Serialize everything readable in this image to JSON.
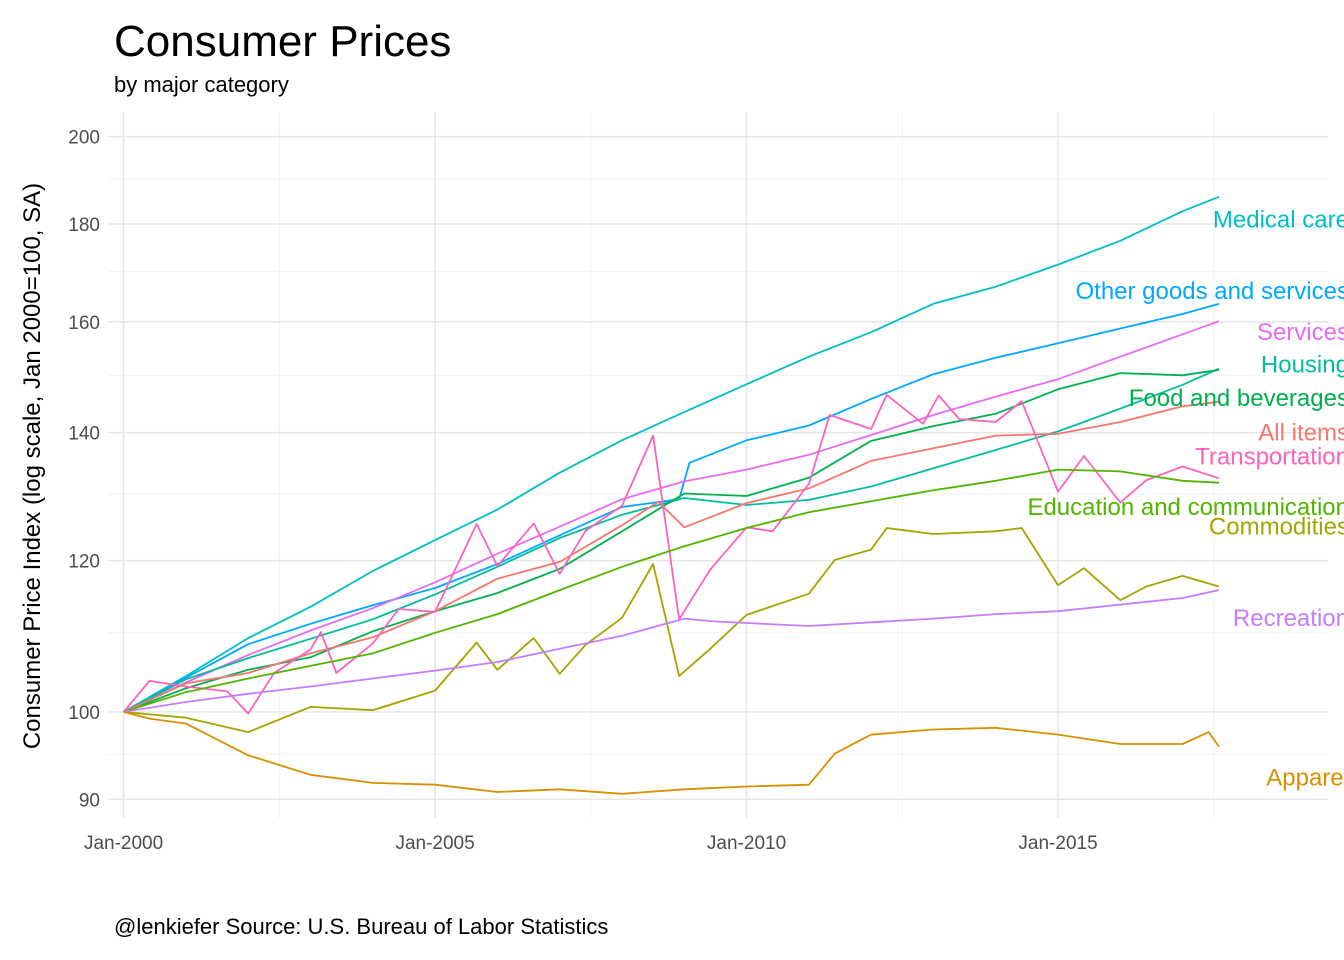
{
  "chart_data": {
    "type": "line",
    "title": "Consumer Prices",
    "subtitle": "by major category",
    "ylabel": "Consumer Price Index (log scale, Jan 2000=100, SA)",
    "xlabel": "",
    "caption": "@lenkiefer Source: U.S. Bureau of Labor Statistics",
    "y_scale": "log",
    "ylim": [
      88,
      206
    ],
    "xlim": [
      "1999-10",
      "2019-05"
    ],
    "grid": true,
    "legend": "direct labels at line ends",
    "y_ticks": [
      90,
      100,
      120,
      140,
      160,
      180,
      200
    ],
    "y_minor_ticks": [
      95,
      110,
      130,
      150,
      170,
      190
    ],
    "x_ticks": [
      {
        "date": "2000-01",
        "label": "Jan-2000"
      },
      {
        "date": "2005-01",
        "label": "Jan-2005"
      },
      {
        "date": "2010-01",
        "label": "Jan-2010"
      },
      {
        "date": "2015-01",
        "label": "Jan-2015"
      }
    ],
    "x_minor_ticks": [
      "2002-07",
      "2007-07",
      "2012-07",
      "2017-07"
    ],
    "series": [
      {
        "name": "Medical care",
        "color": "#00BFC4",
        "label_y": 181,
        "points": [
          [
            "2000-01",
            100
          ],
          [
            "2001-01",
            104.4
          ],
          [
            "2002-01",
            109.3
          ],
          [
            "2003-01",
            113.5
          ],
          [
            "2004-01",
            118.5
          ],
          [
            "2005-01",
            123
          ],
          [
            "2006-01",
            127.6
          ],
          [
            "2007-01",
            133.4
          ],
          [
            "2008-01",
            138.7
          ],
          [
            "2009-01",
            143.5
          ],
          [
            "2010-01",
            148.4
          ],
          [
            "2011-01",
            153.4
          ],
          [
            "2012-01",
            158
          ],
          [
            "2013-01",
            163.5
          ],
          [
            "2014-01",
            166.9
          ],
          [
            "2015-01",
            171.4
          ],
          [
            "2016-01",
            176.4
          ],
          [
            "2017-01",
            182.8
          ],
          [
            "2017-08",
            186
          ]
        ]
      },
      {
        "name": "Other goods and services",
        "color": "#00A9FF",
        "label_y": 166,
        "points": [
          [
            "2000-01",
            100
          ],
          [
            "2001-01",
            104.2
          ],
          [
            "2002-01",
            108.5
          ],
          [
            "2003-01",
            111.2
          ],
          [
            "2004-01",
            113.7
          ],
          [
            "2005-01",
            116.1
          ],
          [
            "2006-01",
            119.5
          ],
          [
            "2007-01",
            123.7
          ],
          [
            "2008-01",
            128
          ],
          [
            "2008-12",
            129.2
          ],
          [
            "2009-02",
            135
          ],
          [
            "2010-01",
            138.7
          ],
          [
            "2011-01",
            141.2
          ],
          [
            "2012-01",
            145.8
          ],
          [
            "2013-01",
            150.2
          ],
          [
            "2014-01",
            153.2
          ],
          [
            "2015-01",
            155.9
          ],
          [
            "2016-01",
            158.7
          ],
          [
            "2017-01",
            161.5
          ],
          [
            "2017-08",
            163.5
          ]
        ]
      },
      {
        "name": "Services",
        "color": "#E76BF3",
        "label_y": 158,
        "points": [
          [
            "2000-01",
            100
          ],
          [
            "2001-01",
            103.6
          ],
          [
            "2002-01",
            107.1
          ],
          [
            "2003-01",
            110.3
          ],
          [
            "2004-01",
            113.3
          ],
          [
            "2005-01",
            116.9
          ],
          [
            "2006-01",
            121
          ],
          [
            "2007-01",
            125
          ],
          [
            "2008-01",
            129.2
          ],
          [
            "2009-01",
            132
          ],
          [
            "2010-01",
            133.9
          ],
          [
            "2011-01",
            136.3
          ],
          [
            "2012-01",
            139.6
          ],
          [
            "2013-01",
            143
          ],
          [
            "2014-01",
            146.2
          ],
          [
            "2015-01",
            149.3
          ],
          [
            "2016-01",
            153.4
          ],
          [
            "2017-01",
            157.6
          ],
          [
            "2017-08",
            160.1
          ]
        ]
      },
      {
        "name": "Housing",
        "color": "#00BE9C",
        "label_y": 152,
        "points": [
          [
            "2000-01",
            100
          ],
          [
            "2001-01",
            104
          ],
          [
            "2002-01",
            106.7
          ],
          [
            "2003-01",
            109.2
          ],
          [
            "2004-01",
            111.8
          ],
          [
            "2005-01",
            115.2
          ],
          [
            "2006-01",
            119.1
          ],
          [
            "2007-01",
            123.3
          ],
          [
            "2008-01",
            126.8
          ],
          [
            "2009-01",
            129.4
          ],
          [
            "2010-01",
            128.3
          ],
          [
            "2011-01",
            129.1
          ],
          [
            "2012-01",
            131.2
          ],
          [
            "2013-01",
            134.1
          ],
          [
            "2014-01",
            137.1
          ],
          [
            "2015-01",
            140.2
          ],
          [
            "2016-01",
            144.1
          ],
          [
            "2017-01",
            148.3
          ],
          [
            "2017-08",
            151.2
          ]
        ]
      },
      {
        "name": "Food and beverages",
        "color": "#00B050",
        "label_y": 146,
        "points": [
          [
            "2000-01",
            100
          ],
          [
            "2001-01",
            102.9
          ],
          [
            "2002-01",
            105.2
          ],
          [
            "2003-01",
            106.8
          ],
          [
            "2004-01",
            110.2
          ],
          [
            "2005-01",
            112.9
          ],
          [
            "2006-01",
            115.4
          ],
          [
            "2007-01",
            118.8
          ],
          [
            "2008-01",
            124.3
          ],
          [
            "2009-01",
            130.1
          ],
          [
            "2010-01",
            129.7
          ],
          [
            "2011-01",
            132.6
          ],
          [
            "2012-01",
            138.6
          ],
          [
            "2013-01",
            141.1
          ],
          [
            "2014-01",
            143.2
          ],
          [
            "2015-01",
            147.5
          ],
          [
            "2016-01",
            150.4
          ],
          [
            "2017-01",
            150
          ],
          [
            "2017-08",
            151
          ]
        ]
      },
      {
        "name": "All items",
        "color": "#F8766D",
        "label_y": 140,
        "points": [
          [
            "2000-01",
            100
          ],
          [
            "2001-01",
            103.5
          ],
          [
            "2002-01",
            104.8
          ],
          [
            "2003-01",
            107.3
          ],
          [
            "2004-01",
            109.4
          ],
          [
            "2005-01",
            112.9
          ],
          [
            "2006-01",
            117.4
          ],
          [
            "2007-01",
            119.8
          ],
          [
            "2008-01",
            125.2
          ],
          [
            "2008-08",
            128.8
          ],
          [
            "2009-01",
            124.9
          ],
          [
            "2010-01",
            128.6
          ],
          [
            "2011-01",
            130.9
          ],
          [
            "2012-01",
            135.3
          ],
          [
            "2013-01",
            137.4
          ],
          [
            "2014-01",
            139.5
          ],
          [
            "2015-01",
            139.8
          ],
          [
            "2016-01",
            141.8
          ],
          [
            "2017-01",
            144.5
          ],
          [
            "2017-08",
            145.3
          ]
        ]
      },
      {
        "name": "Transportation",
        "color": "#FF62BC",
        "label_y": 136,
        "points": [
          [
            "2000-01",
            100
          ],
          [
            "2000-06",
            103.8
          ],
          [
            "2001-01",
            103.1
          ],
          [
            "2001-09",
            102.5
          ],
          [
            "2002-01",
            99.8
          ],
          [
            "2002-06",
            104.8
          ],
          [
            "2003-01",
            107.8
          ],
          [
            "2003-03",
            110.1
          ],
          [
            "2003-06",
            104.8
          ],
          [
            "2004-01",
            108.6
          ],
          [
            "2004-06",
            113.2
          ],
          [
            "2005-01",
            112.8
          ],
          [
            "2005-09",
            125.4
          ],
          [
            "2006-01",
            119.2
          ],
          [
            "2006-08",
            125.5
          ],
          [
            "2007-01",
            118.1
          ],
          [
            "2007-06",
            124.4
          ],
          [
            "2008-01",
            128.2
          ],
          [
            "2008-07",
            139.5
          ],
          [
            "2008-12",
            111.8
          ],
          [
            "2009-06",
            118.7
          ],
          [
            "2010-01",
            124.9
          ],
          [
            "2010-06",
            124.3
          ],
          [
            "2011-01",
            131.6
          ],
          [
            "2011-05",
            143
          ],
          [
            "2012-01",
            140.6
          ],
          [
            "2012-04",
            146.5
          ],
          [
            "2012-11",
            141.5
          ],
          [
            "2013-02",
            146.4
          ],
          [
            "2013-06",
            142.3
          ],
          [
            "2014-01",
            141.8
          ],
          [
            "2014-06",
            145.4
          ],
          [
            "2015-01",
            130.4
          ],
          [
            "2015-06",
            136.1
          ],
          [
            "2016-01",
            128.7
          ],
          [
            "2016-06",
            132.2
          ],
          [
            "2017-01",
            134.4
          ],
          [
            "2017-08",
            132.5
          ]
        ]
      },
      {
        "name": "Education and communication",
        "color": "#53B400",
        "label_y": 128,
        "points": [
          [
            "2000-01",
            100
          ],
          [
            "2001-01",
            102.4
          ],
          [
            "2002-01",
            104.1
          ],
          [
            "2003-01",
            105.7
          ],
          [
            "2004-01",
            107.3
          ],
          [
            "2005-01",
            110
          ],
          [
            "2006-01",
            112.5
          ],
          [
            "2007-01",
            115.8
          ],
          [
            "2008-01",
            119.1
          ],
          [
            "2009-01",
            122.1
          ],
          [
            "2010-01",
            124.8
          ],
          [
            "2011-01",
            127.2
          ],
          [
            "2012-01",
            128.9
          ],
          [
            "2013-01",
            130.6
          ],
          [
            "2014-01",
            132.1
          ],
          [
            "2015-01",
            133.9
          ],
          [
            "2016-01",
            133.6
          ],
          [
            "2017-01",
            132.1
          ],
          [
            "2017-08",
            131.8
          ]
        ]
      },
      {
        "name": "Commodities",
        "color": "#A3A500",
        "label_y": 125,
        "points": [
          [
            "2000-01",
            100
          ],
          [
            "2001-01",
            99.3
          ],
          [
            "2002-01",
            97.6
          ],
          [
            "2003-01",
            100.6
          ],
          [
            "2004-01",
            100.2
          ],
          [
            "2005-01",
            102.6
          ],
          [
            "2005-09",
            108.7
          ],
          [
            "2006-01",
            105.2
          ],
          [
            "2006-08",
            109.3
          ],
          [
            "2007-01",
            104.7
          ],
          [
            "2007-06",
            108.4
          ],
          [
            "2008-01",
            112
          ],
          [
            "2008-07",
            119.5
          ],
          [
            "2008-12",
            104.4
          ],
          [
            "2009-06",
            107.9
          ],
          [
            "2010-01",
            112.4
          ],
          [
            "2011-01",
            115.3
          ],
          [
            "2011-06",
            120.1
          ],
          [
            "2012-01",
            121.6
          ],
          [
            "2012-04",
            124.8
          ],
          [
            "2013-01",
            123.9
          ],
          [
            "2014-01",
            124.3
          ],
          [
            "2014-06",
            124.8
          ],
          [
            "2015-01",
            116.5
          ],
          [
            "2015-06",
            118.9
          ],
          [
            "2016-01",
            114.4
          ],
          [
            "2016-06",
            116.3
          ],
          [
            "2017-01",
            117.8
          ],
          [
            "2017-08",
            116.3
          ]
        ]
      },
      {
        "name": "Recreation",
        "color": "#C77CFF",
        "label_y": 112,
        "points": [
          [
            "2000-01",
            100
          ],
          [
            "2001-01",
            101.2
          ],
          [
            "2002-01",
            102.2
          ],
          [
            "2003-01",
            103.1
          ],
          [
            "2004-01",
            104.1
          ],
          [
            "2005-01",
            105.1
          ],
          [
            "2006-01",
            106.2
          ],
          [
            "2007-01",
            107.9
          ],
          [
            "2008-01",
            109.6
          ],
          [
            "2009-01",
            111.9
          ],
          [
            "2009-07",
            111.5
          ],
          [
            "2010-01",
            111.3
          ],
          [
            "2011-01",
            110.9
          ],
          [
            "2012-01",
            111.4
          ],
          [
            "2013-01",
            111.9
          ],
          [
            "2014-01",
            112.5
          ],
          [
            "2015-01",
            112.9
          ],
          [
            "2016-01",
            113.8
          ],
          [
            "2017-01",
            114.7
          ],
          [
            "2017-08",
            115.8
          ]
        ]
      },
      {
        "name": "Apparel",
        "color": "#D89000",
        "label_y": 92.4,
        "points": [
          [
            "2000-01",
            100
          ],
          [
            "2000-06",
            99.2
          ],
          [
            "2001-01",
            98.6
          ],
          [
            "2002-01",
            94.9
          ],
          [
            "2003-01",
            92.7
          ],
          [
            "2004-01",
            91.8
          ],
          [
            "2005-01",
            91.6
          ],
          [
            "2006-01",
            90.8
          ],
          [
            "2007-01",
            91.1
          ],
          [
            "2008-01",
            90.6
          ],
          [
            "2009-01",
            91.1
          ],
          [
            "2010-01",
            91.4
          ],
          [
            "2011-01",
            91.6
          ],
          [
            "2011-06",
            95.1
          ],
          [
            "2012-01",
            97.3
          ],
          [
            "2013-01",
            97.9
          ],
          [
            "2014-01",
            98.1
          ],
          [
            "2015-01",
            97.3
          ],
          [
            "2016-01",
            96.2
          ],
          [
            "2017-01",
            96.2
          ],
          [
            "2017-06",
            97.6
          ],
          [
            "2017-08",
            95.9
          ]
        ]
      }
    ]
  }
}
